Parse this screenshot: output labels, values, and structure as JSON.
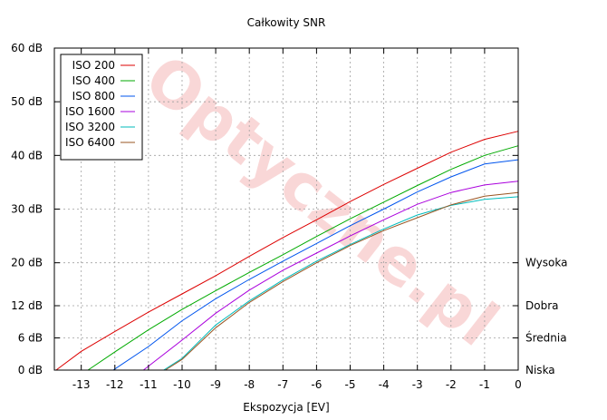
{
  "chart_data": {
    "type": "line",
    "title": "Całkowity SNR",
    "xlabel": "Ekspozycja [EV]",
    "ylabel": "",
    "xlim": [
      -13.8,
      0
    ],
    "ylim": [
      0,
      60
    ],
    "x_ticks": [
      -13,
      -12,
      -11,
      -10,
      -9,
      -8,
      -7,
      -6,
      -5,
      -4,
      -3,
      -2,
      -1,
      0
    ],
    "y_ticks": [
      0,
      6,
      12,
      20,
      30,
      40,
      50,
      60
    ],
    "y_tick_labels": [
      "0 dB",
      "6 dB",
      "12 dB",
      "20 dB",
      "30 dB",
      "40 dB",
      "50 dB",
      "60 dB"
    ],
    "right_axis_labels": [
      {
        "value": 20,
        "label": "Wysoka"
      },
      {
        "value": 12,
        "label": "Dobra"
      },
      {
        "value": 6,
        "label": "Średnia"
      },
      {
        "value": 0,
        "label": "Niska"
      }
    ],
    "grid": true,
    "legend_position": "top-left",
    "watermark": "Optyczne.pl",
    "series": [
      {
        "name": "ISO 200",
        "color": "#dd0000",
        "x": [
          -13.75,
          -13,
          -12,
          -11,
          -10,
          -9,
          -8,
          -7,
          -6,
          -5,
          -4,
          -3,
          -2,
          -1,
          0
        ],
        "y": [
          0,
          3.5,
          7.2,
          10.8,
          14.2,
          17.6,
          21.2,
          24.7,
          28.0,
          31.4,
          34.6,
          37.6,
          40.6,
          43.0,
          44.5
        ]
      },
      {
        "name": "ISO 400",
        "color": "#00aa00",
        "x": [
          -12.8,
          -12,
          -11,
          -10,
          -9,
          -8,
          -7,
          -6,
          -5,
          -4,
          -3,
          -2,
          -1,
          0
        ],
        "y": [
          0,
          3.4,
          7.5,
          11.3,
          14.8,
          18.2,
          21.5,
          24.9,
          28.2,
          31.3,
          34.4,
          37.4,
          40.0,
          41.8
        ]
      },
      {
        "name": "ISO 800",
        "color": "#0055ee",
        "x": [
          -12.05,
          -11,
          -10,
          -9,
          -8,
          -7,
          -6,
          -5,
          -4,
          -3,
          -2,
          -1,
          0
        ],
        "y": [
          0,
          4.4,
          9.2,
          13.3,
          16.9,
          20.3,
          23.6,
          26.9,
          30.0,
          33.2,
          36.0,
          38.4,
          39.2
        ]
      },
      {
        "name": "ISO 1600",
        "color": "#aa00dd",
        "x": [
          -11.15,
          -10,
          -9,
          -8,
          -7,
          -6,
          -5,
          -4,
          -3,
          -2,
          -1,
          0
        ],
        "y": [
          0,
          5.6,
          10.6,
          14.9,
          18.6,
          21.8,
          25.0,
          28.0,
          30.9,
          33.1,
          34.5,
          35.2
        ]
      },
      {
        "name": "ISO 3200",
        "color": "#00bbbb",
        "x": [
          -10.55,
          -10,
          -9,
          -8,
          -7,
          -6,
          -5,
          -4,
          -3,
          -2,
          -1,
          0
        ],
        "y": [
          0,
          2.2,
          8.4,
          12.9,
          16.8,
          20.3,
          23.4,
          26.3,
          28.9,
          30.7,
          31.8,
          32.3
        ]
      },
      {
        "name": "ISO 6400",
        "color": "#995522",
        "x": [
          -10.5,
          -10,
          -9,
          -8,
          -7,
          -6,
          -5,
          -4,
          -3,
          -2,
          -1,
          0
        ],
        "y": [
          0,
          2.0,
          7.9,
          12.6,
          16.5,
          20.0,
          23.2,
          26.0,
          28.4,
          30.8,
          32.4,
          33.1
        ]
      }
    ]
  }
}
